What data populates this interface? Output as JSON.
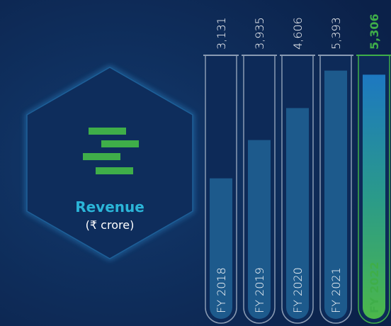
{
  "chart_data": {
    "type": "bar",
    "title": "Revenue",
    "subtitle": "(₹ crore)",
    "categories": [
      "FY 2018",
      "FY 2019",
      "FY 2020",
      "FY 2021",
      "FY 2022"
    ],
    "values": [
      3131,
      3935,
      4606,
      5393,
      5306
    ],
    "value_labels": [
      "3,131",
      "3,935",
      "4,606",
      "5,393",
      "5,306"
    ],
    "color": "#1d5a8c",
    "highlight_color": "#3fae49",
    "highlight_index": 4
  }
}
